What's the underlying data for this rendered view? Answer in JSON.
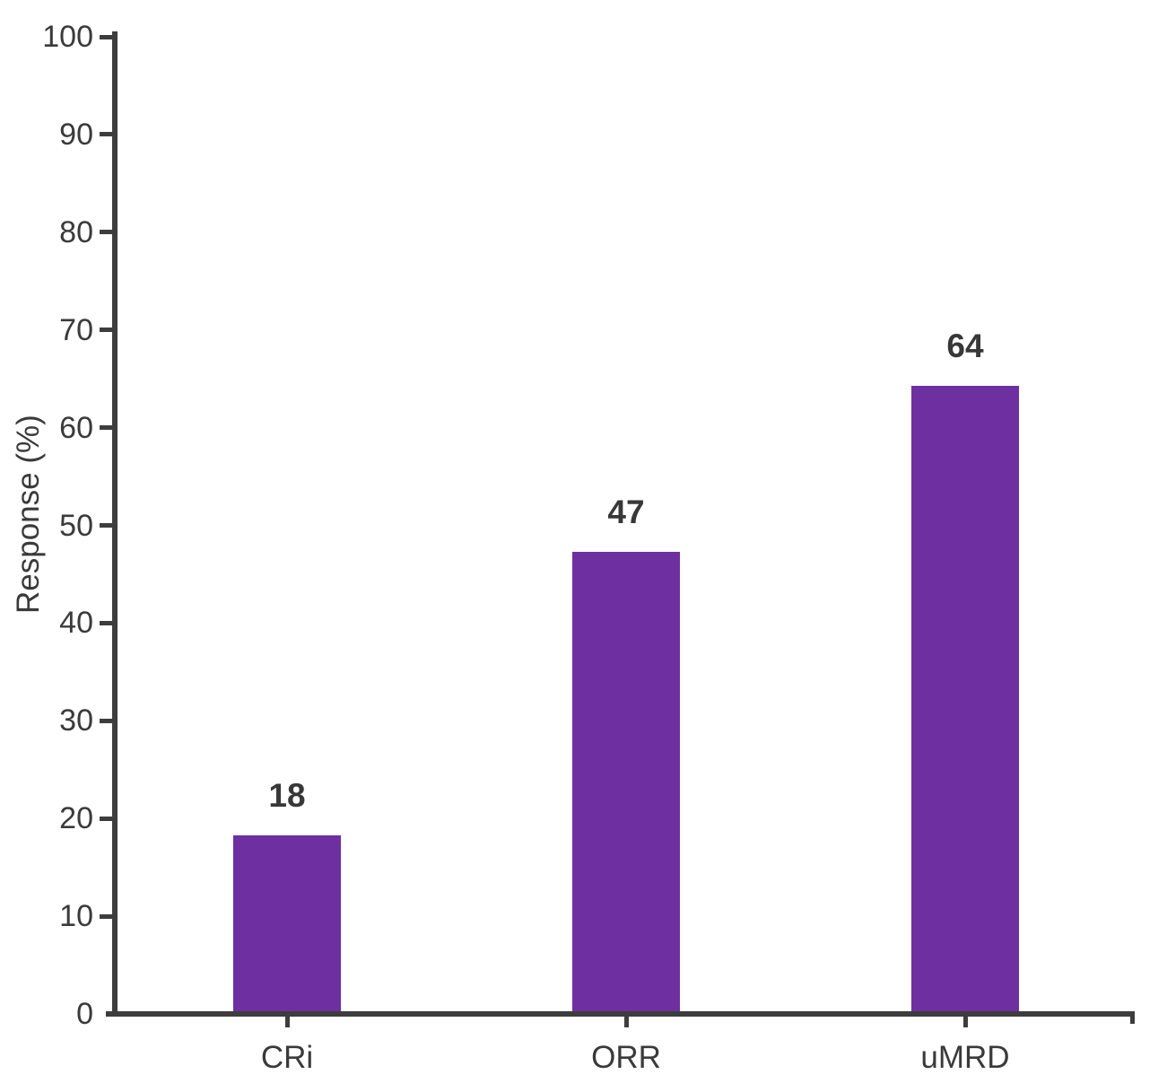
{
  "chart_data": {
    "type": "bar",
    "categories": [
      "CRi",
      "ORR",
      "uMRD"
    ],
    "values": [
      18,
      47,
      64
    ],
    "data_labels": [
      "18",
      "47",
      "64"
    ],
    "title": "",
    "xlabel": "",
    "ylabel": "Response (%)",
    "ylim": [
      0,
      100
    ],
    "ytick_step": 10,
    "ytick_labels": [
      "0",
      "10",
      "20",
      "30",
      "40",
      "50",
      "60",
      "70",
      "80",
      "90",
      "100"
    ],
    "grid": false,
    "legend_position": "none",
    "bar_color": "#6e2fa0",
    "axis_color": "#3d3d3d",
    "text_color": "#3a3a3a",
    "background_color": "#ffffff"
  }
}
